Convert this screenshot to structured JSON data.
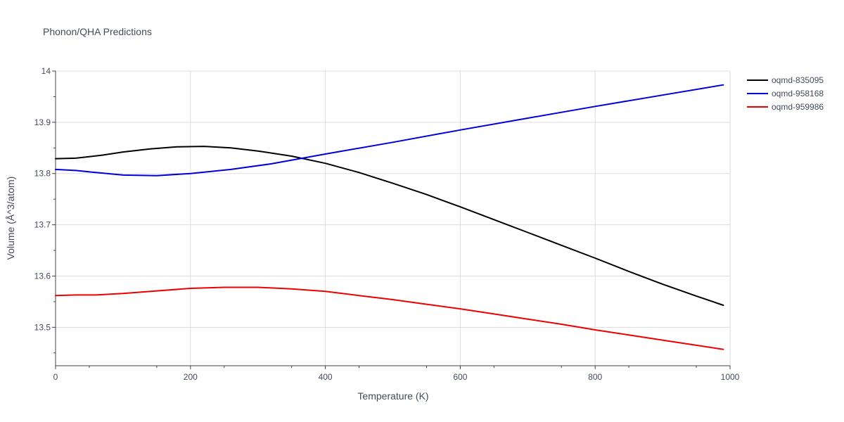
{
  "chart_data": {
    "type": "line",
    "title": "Phonon/QHA Predictions",
    "xlabel": "Temperature (K)",
    "ylabel": "Volume (Å^3/atom)",
    "xlim": [
      0,
      1000
    ],
    "ylim": [
      13.425,
      14.0
    ],
    "x_ticks": [
      0,
      200,
      400,
      600,
      800,
      1000
    ],
    "y_ticks": [
      13.5,
      13.6,
      13.7,
      13.8,
      13.9,
      14
    ],
    "x_tick_labels": [
      "0",
      "200",
      "400",
      "600",
      "800",
      "1000"
    ],
    "y_tick_labels": [
      "13.5",
      "13.6",
      "13.7",
      "13.8",
      "13.9",
      "14"
    ],
    "grid": true,
    "legend_position": "top-right",
    "series": [
      {
        "name": "oqmd-835095",
        "color": "#000000",
        "x": [
          0,
          30,
          70,
          100,
          140,
          180,
          220,
          260,
          300,
          350,
          400,
          450,
          500,
          550,
          600,
          650,
          700,
          750,
          800,
          850,
          900,
          950,
          990
        ],
        "y": [
          13.829,
          13.83,
          13.836,
          13.842,
          13.848,
          13.852,
          13.853,
          13.85,
          13.844,
          13.834,
          13.82,
          13.802,
          13.781,
          13.759,
          13.735,
          13.71,
          13.685,
          13.66,
          13.635,
          13.609,
          13.584,
          13.561,
          13.543
        ]
      },
      {
        "name": "oqmd-958168",
        "color": "#0000dd",
        "x": [
          0,
          30,
          60,
          100,
          150,
          200,
          260,
          320,
          400,
          500,
          600,
          700,
          800,
          900,
          990
        ],
        "y": [
          13.808,
          13.806,
          13.802,
          13.797,
          13.796,
          13.8,
          13.808,
          13.819,
          13.838,
          13.861,
          13.885,
          13.908,
          13.931,
          13.953,
          13.973
        ]
      },
      {
        "name": "oqmd-959986",
        "color": "#ee0000",
        "x": [
          0,
          30,
          60,
          100,
          150,
          200,
          250,
          300,
          350,
          400,
          450,
          500,
          550,
          600,
          650,
          700,
          750,
          800,
          850,
          900,
          950,
          990
        ],
        "y": [
          13.562,
          13.563,
          13.563,
          13.566,
          13.571,
          13.576,
          13.578,
          13.578,
          13.575,
          13.57,
          13.562,
          13.554,
          13.545,
          13.536,
          13.526,
          13.516,
          13.506,
          13.495,
          13.485,
          13.475,
          13.465,
          13.457
        ]
      }
    ]
  }
}
